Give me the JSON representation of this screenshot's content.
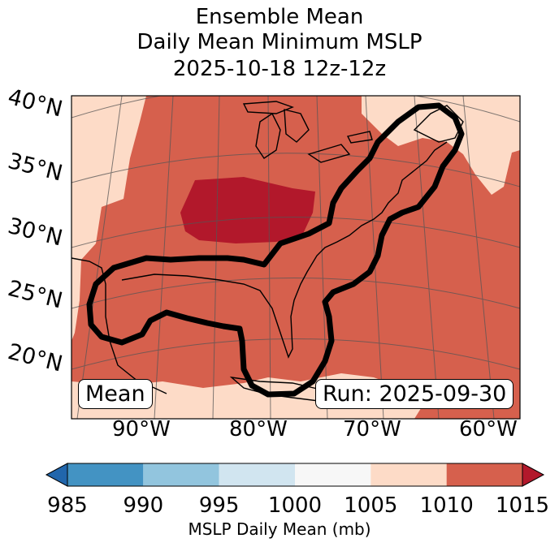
{
  "title": {
    "line1": "Ensemble Mean",
    "line2": "Daily Mean Minimum MSLP",
    "line3": "2025-10-18 12z-12z"
  },
  "map": {
    "lat_labels": [
      "40°N",
      "35°N",
      "30°N",
      "25°N",
      "20°N"
    ],
    "lon_labels": [
      "90°W",
      "80°W",
      "70°W",
      "60°W"
    ],
    "mean_label": "Mean",
    "run_label": "Run: 2025-09-30"
  },
  "colorbar": {
    "label": "MSLP Daily Mean (mb)",
    "ticks": [
      "985",
      "990",
      "995",
      "1000",
      "1005",
      "1010",
      "1015"
    ],
    "colors": [
      "#4393c3",
      "#92c5de",
      "#d1e5f0",
      "#f7f7f7",
      "#fddbc7",
      "#d6604d",
      "#b2182b"
    ],
    "under_color": "#2166ac",
    "over_color": "#b2182b"
  },
  "fill_colors": {
    "light": "#fddbc7",
    "mid": "#d6604d",
    "dark": "#b2182b"
  }
}
